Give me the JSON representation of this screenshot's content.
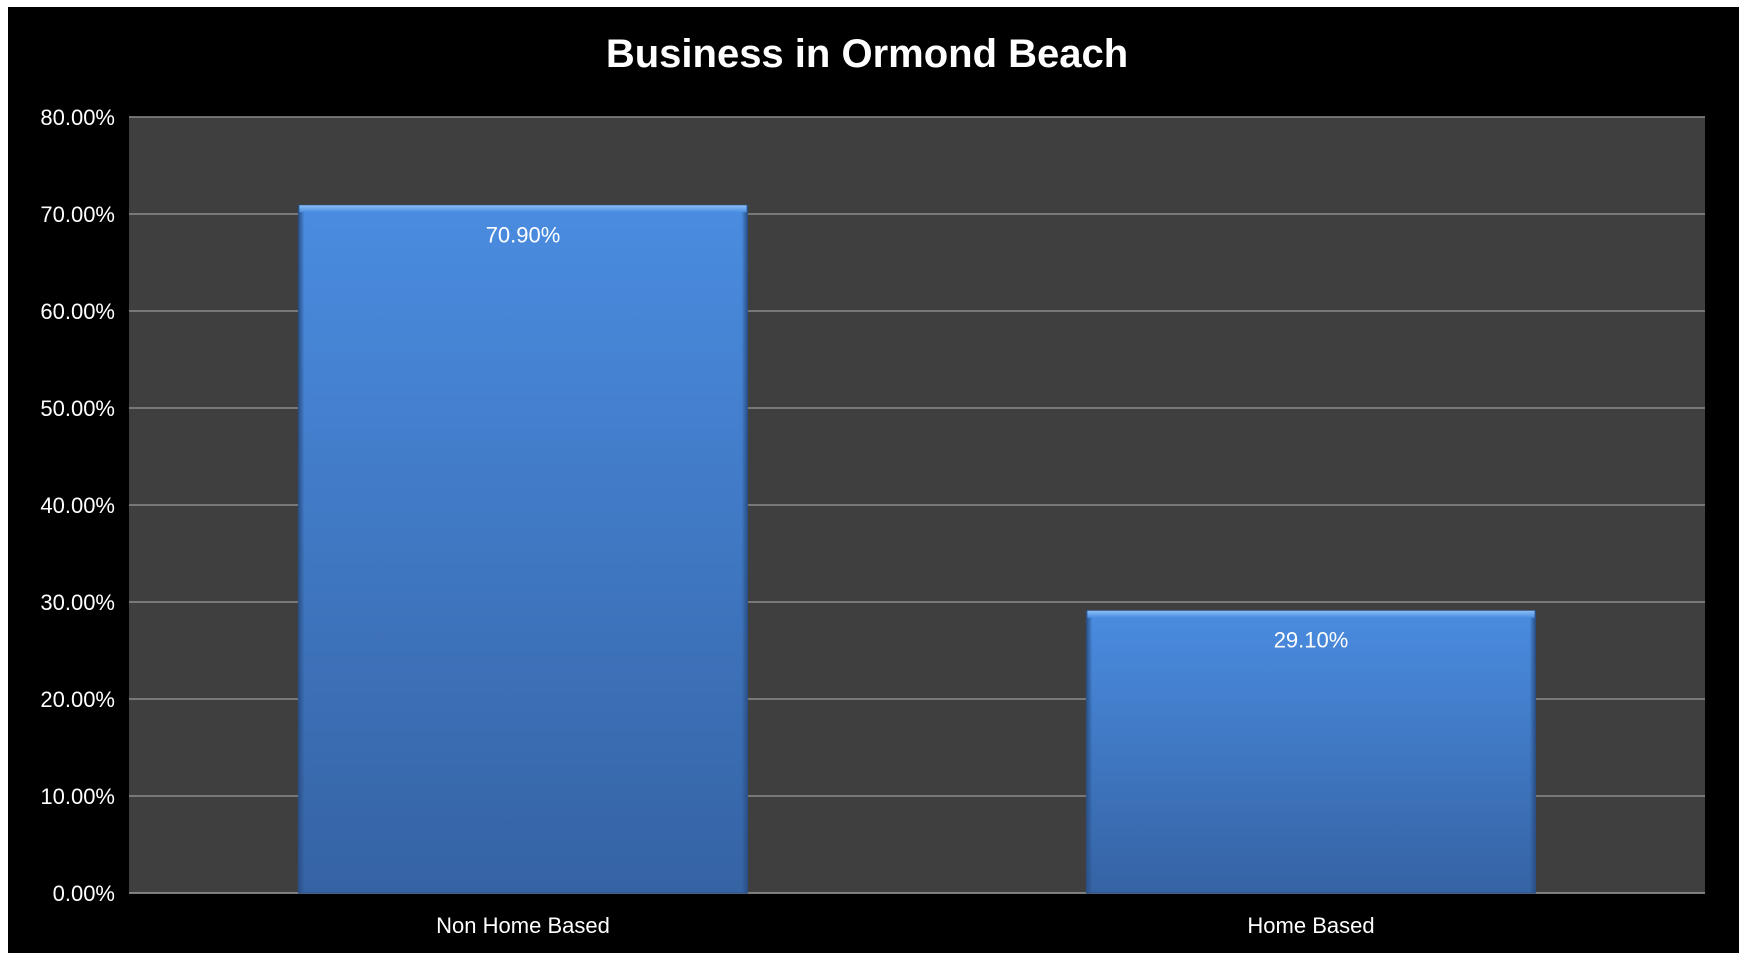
{
  "colors": {
    "background": "#000000",
    "plot_area": "#3f3f3f",
    "gridline": "#8c8c8c",
    "bar_top": "#4a8ce0",
    "bar_bottom": "#3563a4",
    "text": "#ffffff"
  },
  "chart_data": {
    "type": "bar",
    "title": "Business in Ormond Beach",
    "xlabel": "",
    "ylabel": "",
    "categories": [
      "Non Home Based",
      "Home Based"
    ],
    "values": [
      70.9,
      29.1
    ],
    "data_labels": [
      "70.90%",
      "29.10%"
    ],
    "ylim": [
      0,
      80
    ],
    "y_ticks": [
      0,
      10,
      20,
      30,
      40,
      50,
      60,
      70,
      80
    ],
    "y_tick_labels": [
      "0.00%",
      "10.00%",
      "20.00%",
      "30.00%",
      "40.00%",
      "50.00%",
      "60.00%",
      "70.00%",
      "80.00%"
    ],
    "grid": true,
    "legend": "none"
  }
}
